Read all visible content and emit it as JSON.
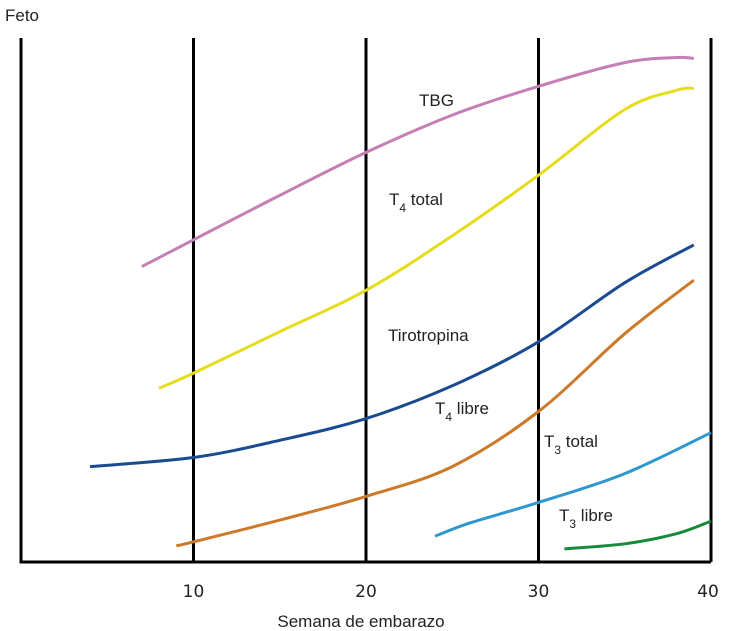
{
  "chart_data": {
    "type": "line",
    "ylabel": "Feto",
    "xlabel": "Semana de embarazo",
    "xlim": [
      0,
      40
    ],
    "xticks": [
      10,
      20,
      30,
      40
    ],
    "ylim": [
      0,
      100
    ],
    "y_tick_labels": "none",
    "grid": "vertical lines at x = 10, 20, 30, 40",
    "legend": "none (series labeled directly on chart)",
    "colors": {
      "TBG": "#c57fb6",
      "T4 total": "#e6dc1e",
      "Tirotropina": "#1a4b91",
      "T4 libre": "#cc7a2a",
      "T3 total": "#2f97cf",
      "T3 libre": "#188a3c"
    },
    "series": [
      {
        "key": "TBG",
        "x": [
          7,
          10,
          15,
          20,
          25,
          30,
          35,
          38,
          39
        ],
        "values": [
          58.5,
          63.8,
          72.6,
          81.1,
          88.5,
          94.2,
          98.9,
          99.9,
          99.7
        ]
      },
      {
        "key": "T4 total",
        "x": [
          8,
          10,
          15,
          20,
          25,
          30,
          35,
          38,
          39
        ],
        "values": [
          34.4,
          37.4,
          45.6,
          53.8,
          64.6,
          76.6,
          89.6,
          93.4,
          93.8
        ]
      },
      {
        "key": "Tirotropina",
        "x": [
          4,
          10,
          15,
          20,
          25,
          30,
          35,
          39
        ],
        "values": [
          18.9,
          20.7,
          24.1,
          28.4,
          34.9,
          43.6,
          55.3,
          62.8
        ]
      },
      {
        "key": "T4 libre",
        "x": [
          9,
          10,
          15,
          20,
          25,
          30,
          35,
          39
        ],
        "values": [
          3.2,
          4.0,
          8.3,
          13.0,
          18.9,
          29.8,
          45.2,
          55.8
        ]
      },
      {
        "key": "T3 total",
        "x": [
          24,
          26,
          30,
          35,
          40
        ],
        "values": [
          5.1,
          7.7,
          11.8,
          17.5,
          25.6
        ]
      },
      {
        "key": "T3 libre",
        "x": [
          31.5,
          35,
          38,
          40
        ],
        "values": [
          2.6,
          3.6,
          5.6,
          8.1
        ]
      }
    ]
  },
  "labels": {
    "tbg": {
      "text": "TBG"
    },
    "t4_total": {
      "main": "T",
      "sub": "4",
      "rest": " total"
    },
    "tirotropina": {
      "text": "Tirotropina"
    },
    "t4_libre": {
      "main": "T",
      "sub": "4",
      "rest": " libre"
    },
    "t3_total": {
      "main": "T",
      "sub": "3",
      "rest": " total"
    },
    "t3_libre": {
      "main": "T",
      "sub": "3",
      "rest": " libre"
    }
  }
}
